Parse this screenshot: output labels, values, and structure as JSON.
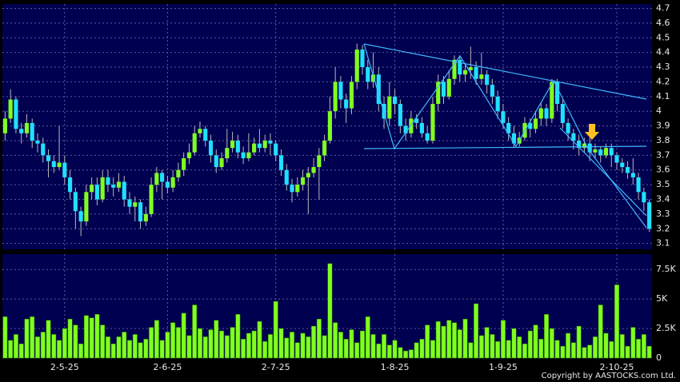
{
  "chart_data": [
    {
      "type": "candlestick",
      "up_color": "#80ff20",
      "down_color": "#20e0ff",
      "grid": true,
      "ylim": [
        3.06,
        4.73
      ],
      "yticks": [
        3.1,
        3.2,
        3.3,
        3.4,
        3.5,
        3.6,
        3.7,
        3.8,
        3.9,
        4,
        4.1,
        4.2,
        4.3,
        4.4,
        4.5,
        4.6,
        4.7
      ],
      "open": [
        3.85,
        3.95,
        4.08,
        3.88,
        3.85,
        3.92,
        3.8,
        3.78,
        3.7,
        3.66,
        3.62,
        3.65,
        3.55,
        3.45,
        3.32,
        3.25,
        3.45,
        3.5,
        3.4,
        3.55,
        3.5,
        3.48,
        3.52,
        3.4,
        3.35,
        3.38,
        3.25,
        3.3,
        3.5,
        3.58,
        3.52,
        3.48,
        3.55,
        3.6,
        3.68,
        3.72,
        3.85,
        3.88,
        3.8,
        3.7,
        3.62,
        3.68,
        3.75,
        3.8,
        3.72,
        3.68,
        3.72,
        3.78,
        3.75,
        3.8,
        3.78,
        3.7,
        3.6,
        3.5,
        3.45,
        3.5,
        3.55,
        3.58,
        3.62,
        3.7,
        3.8,
        4.0,
        4.2,
        4.08,
        4.02,
        4.2,
        4.42,
        4.3,
        4.2,
        4.25,
        4.05,
        3.95,
        4.1,
        4.05,
        3.9,
        3.85,
        3.95,
        3.92,
        3.85,
        3.8,
        4.05,
        4.2,
        4.1,
        4.22,
        4.35,
        4.25,
        4.28,
        4.3,
        4.22,
        4.25,
        4.18,
        4.1,
        4.0,
        3.92,
        3.85,
        3.78,
        3.82,
        3.92,
        3.88,
        3.95,
        4.02,
        3.95,
        4.2,
        4.05,
        3.92,
        3.85,
        3.8,
        3.75,
        3.78,
        3.72,
        3.74,
        3.7,
        3.75,
        3.7,
        3.65,
        3.62,
        3.58,
        3.55,
        3.45,
        3.38
      ],
      "high": [
        4.0,
        4.15,
        4.1,
        3.92,
        3.98,
        3.95,
        3.85,
        3.82,
        3.74,
        3.7,
        3.9,
        3.7,
        3.6,
        3.48,
        3.35,
        3.5,
        3.55,
        3.55,
        3.6,
        3.6,
        3.55,
        3.58,
        3.56,
        3.45,
        3.42,
        3.4,
        3.35,
        3.55,
        3.62,
        3.6,
        3.56,
        3.6,
        3.65,
        3.72,
        3.78,
        3.9,
        3.93,
        3.9,
        3.84,
        3.74,
        3.72,
        3.88,
        3.86,
        3.84,
        3.76,
        3.85,
        3.82,
        3.88,
        3.84,
        3.85,
        3.8,
        3.74,
        3.64,
        3.54,
        3.55,
        3.6,
        3.62,
        3.68,
        3.75,
        3.84,
        4.1,
        4.3,
        4.24,
        4.12,
        4.24,
        4.46,
        4.45,
        4.35,
        4.4,
        4.3,
        4.1,
        4.2,
        4.15,
        4.08,
        3.95,
        4.0,
        3.98,
        3.96,
        3.9,
        4.1,
        4.25,
        4.24,
        4.28,
        4.38,
        4.38,
        4.32,
        4.44,
        4.34,
        4.4,
        4.28,
        4.22,
        4.14,
        4.05,
        3.96,
        3.9,
        3.86,
        3.96,
        3.95,
        4.0,
        4.06,
        4.05,
        4.22,
        4.22,
        4.08,
        3.95,
        3.88,
        3.84,
        3.82,
        3.82,
        3.78,
        3.76,
        3.78,
        3.78,
        3.72,
        3.68,
        3.66,
        3.68,
        3.58,
        3.48,
        3.4
      ],
      "low": [
        3.8,
        3.92,
        3.85,
        3.78,
        3.82,
        3.75,
        3.72,
        3.65,
        3.55,
        3.58,
        3.6,
        3.5,
        3.4,
        3.2,
        3.15,
        3.22,
        3.4,
        3.36,
        3.38,
        3.45,
        3.42,
        3.45,
        3.35,
        3.3,
        3.25,
        3.2,
        3.22,
        3.28,
        3.45,
        3.4,
        3.44,
        3.45,
        3.52,
        3.56,
        3.64,
        3.7,
        3.82,
        3.76,
        3.65,
        3.58,
        3.6,
        3.65,
        3.72,
        3.68,
        3.64,
        3.66,
        3.7,
        3.72,
        3.72,
        3.7,
        3.66,
        3.56,
        3.46,
        3.38,
        3.42,
        3.46,
        3.3,
        3.55,
        3.4,
        3.66,
        3.78,
        3.95,
        4.02,
        3.92,
        3.98,
        4.15,
        4.25,
        4.15,
        4.16,
        4.0,
        3.88,
        3.9,
        3.98,
        3.85,
        3.8,
        3.82,
        3.88,
        3.82,
        3.78,
        3.78,
        4.0,
        4.05,
        4.08,
        4.18,
        4.2,
        4.2,
        4.22,
        4.18,
        4.18,
        4.12,
        4.05,
        3.95,
        3.88,
        3.8,
        3.75,
        3.76,
        3.8,
        3.82,
        3.85,
        3.9,
        3.9,
        3.92,
        4.0,
        3.88,
        3.8,
        3.74,
        3.7,
        3.72,
        3.66,
        3.68,
        3.65,
        3.68,
        3.62,
        3.6,
        3.58,
        3.54,
        3.5,
        3.4,
        3.32,
        3.18
      ],
      "close": [
        3.95,
        4.08,
        3.88,
        3.85,
        3.92,
        3.8,
        3.78,
        3.7,
        3.66,
        3.62,
        3.65,
        3.55,
        3.45,
        3.32,
        3.25,
        3.45,
        3.5,
        3.4,
        3.55,
        3.5,
        3.48,
        3.52,
        3.4,
        3.35,
        3.38,
        3.25,
        3.3,
        3.5,
        3.58,
        3.52,
        3.48,
        3.55,
        3.6,
        3.68,
        3.72,
        3.85,
        3.88,
        3.8,
        3.7,
        3.62,
        3.68,
        3.75,
        3.8,
        3.72,
        3.68,
        3.72,
        3.78,
        3.75,
        3.8,
        3.78,
        3.7,
        3.6,
        3.5,
        3.45,
        3.5,
        3.55,
        3.58,
        3.62,
        3.7,
        3.8,
        4.0,
        4.2,
        4.08,
        4.02,
        4.2,
        4.42,
        4.3,
        4.2,
        4.25,
        4.05,
        3.95,
        4.1,
        4.05,
        3.9,
        3.85,
        3.95,
        3.92,
        3.85,
        3.8,
        4.05,
        4.2,
        4.1,
        4.22,
        4.35,
        4.25,
        4.28,
        4.3,
        4.22,
        4.25,
        4.18,
        4.1,
        4.0,
        3.92,
        3.85,
        3.78,
        3.82,
        3.92,
        3.88,
        3.95,
        4.02,
        3.95,
        4.2,
        4.05,
        3.92,
        3.85,
        3.8,
        3.75,
        3.78,
        3.72,
        3.74,
        3.7,
        3.75,
        3.7,
        3.65,
        3.62,
        3.58,
        3.55,
        3.45,
        3.38,
        3.2
      ]
    },
    {
      "type": "bar",
      "color": "#80ff20",
      "grid": true,
      "ylim": [
        0,
        8800
      ],
      "yticks": [
        0,
        {
          "value": 2500,
          "label": "2.5K"
        },
        {
          "value": 5000,
          "label": "5K"
        },
        {
          "value": 7500,
          "label": "7.5K"
        }
      ],
      "xticks": [
        {
          "value": 11,
          "label": "2-5-25"
        },
        {
          "value": 30,
          "label": "2-6-25"
        },
        {
          "value": 50,
          "label": "2-7-25"
        },
        {
          "value": 72,
          "label": "1-8-25"
        },
        {
          "value": 92,
          "label": "1-9-25"
        },
        {
          "value": 113,
          "label": "2-10-25"
        }
      ],
      "values": [
        3500,
        1500,
        2000,
        1200,
        3300,
        3500,
        1800,
        2200,
        3200,
        2000,
        1500,
        2500,
        3300,
        2800,
        1200,
        3600,
        3400,
        3700,
        2800,
        1800,
        1200,
        1800,
        2200,
        1500,
        2000,
        1300,
        1600,
        2600,
        3200,
        1500,
        2200,
        3000,
        2600,
        3800,
        1900,
        4500,
        2500,
        1800,
        2400,
        3200,
        2300,
        1900,
        2600,
        3700,
        1600,
        2100,
        2300,
        3100,
        1400,
        2000,
        4800,
        2500,
        1700,
        2200,
        1300,
        2100,
        1800,
        2700,
        3300,
        1900,
        8000,
        3000,
        2200,
        1600,
        2400,
        1300,
        2300,
        3500,
        2000,
        1200,
        2000,
        1100,
        1500,
        900,
        600,
        700,
        1300,
        1600,
        2800,
        1500,
        3100,
        2700,
        3200,
        3000,
        2400,
        3300,
        1300,
        4600,
        1900,
        2600,
        2000,
        1400,
        3200,
        1500,
        2500,
        1800,
        1200,
        2300,
        2800,
        1600,
        3700,
        2500,
        1500,
        1000,
        2100,
        1300,
        2700,
        900,
        1100,
        1800,
        4500,
        2100,
        1400,
        6200,
        2000,
        1000,
        2600,
        1600,
        2000,
        1000
      ]
    }
  ],
  "footer": "Copyright by AASTOCKS.com Ltd."
}
